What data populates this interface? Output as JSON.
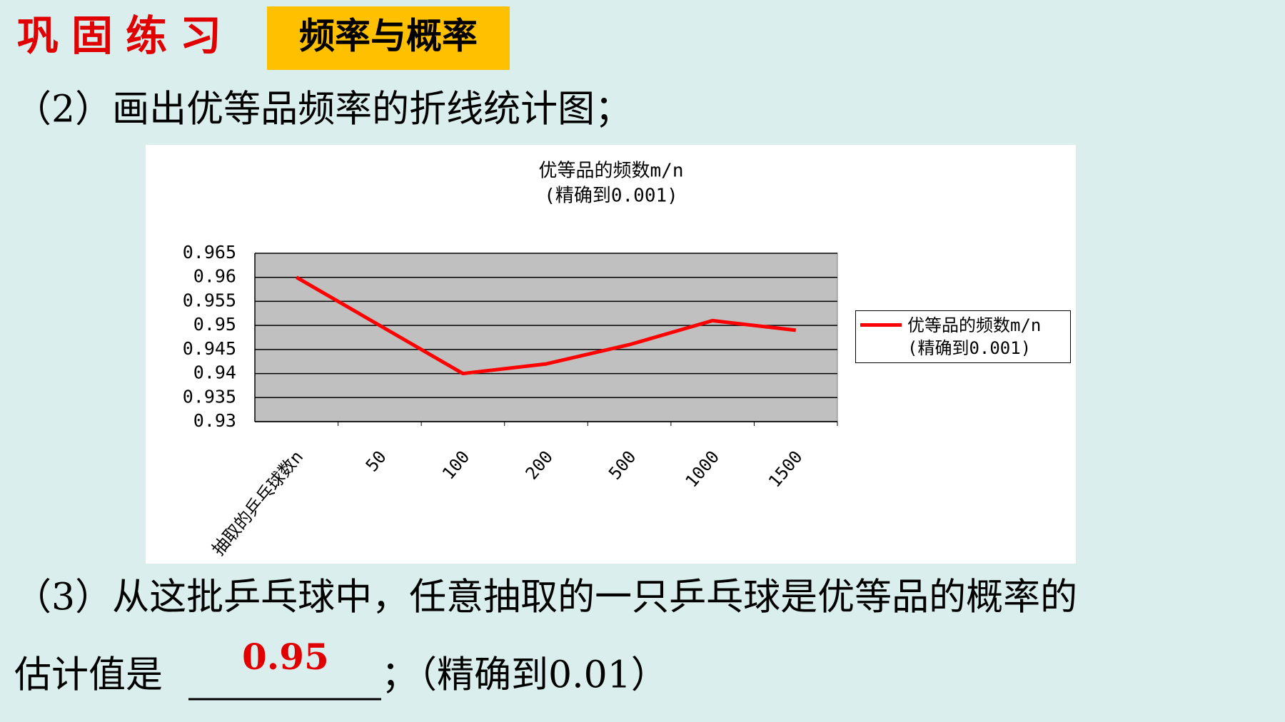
{
  "header": {
    "title": "巩固练习",
    "tag": "频率与概率"
  },
  "question2": "（2）画出优等品频率的折线统计图；",
  "question3": "（3）从这批乒乓球中，任意抽取的一只乒乓球是优等品的概率的",
  "answer_line": {
    "prefix": "估计值是",
    "answer": "0.95",
    "suffix": "；（精确到0.01）"
  },
  "chart_data": {
    "type": "line",
    "title": "优等品的频数m/n",
    "subtitle": "(精确到0.001)",
    "categories": [
      "抽取的乒乓球数n",
      "50",
      "100",
      "200",
      "500",
      "1000",
      "1500"
    ],
    "series": [
      {
        "name": "优等品的频数m/n\n(精确到0.001)",
        "color": "#ff0000",
        "values": [
          0.96,
          0.95,
          0.94,
          0.942,
          0.946,
          0.951,
          0.949
        ]
      }
    ],
    "ylim": [
      0.93,
      0.965
    ],
    "yticks": [
      0.93,
      0.935,
      0.94,
      0.945,
      0.95,
      0.955,
      0.96,
      0.965
    ],
    "grid": true,
    "legend": "right",
    "plot_background": "#c0c0c0"
  }
}
